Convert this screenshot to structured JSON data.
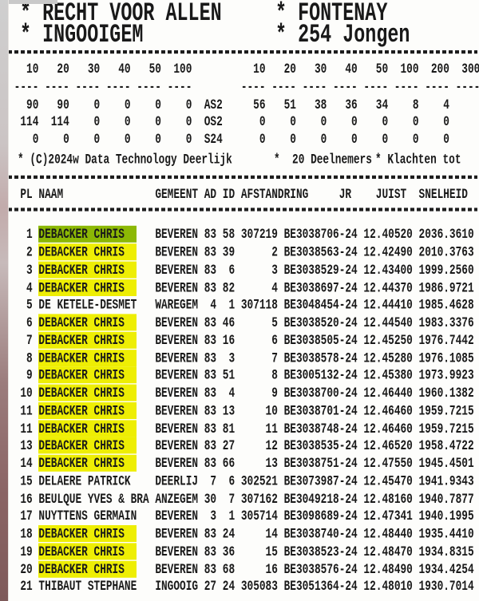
{
  "header": {
    "club_line1": "* RECHT VOOR ALLEN",
    "club_line2": "* INGOOIGEM",
    "race_line1": "* FONTENAY",
    "race_line2": "* 254 Jongen"
  },
  "prize_summary": {
    "left_ticks": [
      "10",
      "20",
      "30",
      "40",
      "50",
      "100"
    ],
    "right_ticks": [
      "10",
      "20",
      "30",
      "40",
      "50",
      "100",
      "200",
      "300"
    ],
    "rows": [
      {
        "label": "AS2",
        "left": [
          "90",
          "90",
          "0",
          "0",
          "0",
          "0"
        ],
        "right": [
          "56",
          "51",
          "38",
          "36",
          "34",
          "8",
          "4",
          ""
        ]
      },
      {
        "label": "OS2",
        "left": [
          "114",
          "114",
          "0",
          "0",
          "0",
          "0"
        ],
        "right": [
          "0",
          "0",
          "0",
          "0",
          "0",
          "0",
          "0",
          ""
        ]
      },
      {
        "label": "S24",
        "left": [
          "0",
          "0",
          "0",
          "0",
          "0",
          "0"
        ],
        "right": [
          "0",
          "0",
          "0",
          "0",
          "0",
          "0",
          "0",
          ""
        ]
      }
    ]
  },
  "footer_line": {
    "copyright": "* (C)2024w Data Technology Deerlijk",
    "participants": "*  20 Deelnemers",
    "complaints": "* Klachten tot"
  },
  "results": {
    "columns": {
      "pl": "PL",
      "naam": "NAAM",
      "gemeent": "GEMEENT",
      "ad": "AD",
      "id": "ID",
      "afstand": "AFSTAND",
      "ring": "RING",
      "jr": "JR",
      "juist": "JUIST",
      "snelheid": "SNELHEID"
    },
    "rows": [
      {
        "pl": "1",
        "naam": "DEBACKER CHRIS",
        "gemeent": "BEVEREN",
        "ad": "83",
        "id": "58",
        "afstand": "307219",
        "ring": "BE3038706-24",
        "juist": "12.40520",
        "snelheid": "2036.3610",
        "hl": "green"
      },
      {
        "pl": "2",
        "naam": "DEBACKER CHRIS",
        "gemeent": "BEVEREN",
        "ad": "83",
        "id": "39",
        "afstand": "2",
        "ring": "BE3038563-24",
        "juist": "12.42490",
        "snelheid": "2010.3763",
        "hl": "yellow"
      },
      {
        "pl": "3",
        "naam": "DEBACKER CHRIS",
        "gemeent": "BEVEREN",
        "ad": "83",
        "id": "6",
        "afstand": "3",
        "ring": "BE3038529-24",
        "juist": "12.43400",
        "snelheid": "1999.2560",
        "hl": "yellow"
      },
      {
        "pl": "4",
        "naam": "DEBACKER CHRIS",
        "gemeent": "BEVEREN",
        "ad": "83",
        "id": "82",
        "afstand": "4",
        "ring": "BE3038697-24",
        "juist": "12.44370",
        "snelheid": "1986.9721",
        "hl": "yellow"
      },
      {
        "pl": "5",
        "naam": "DE KETELE-DESMET",
        "gemeent": "WAREGEM",
        "ad": "4",
        "id": "1",
        "afstand": "307118",
        "ring": "BE3048454-24",
        "juist": "12.44410",
        "snelheid": "1985.4628",
        "hl": null
      },
      {
        "pl": "6",
        "naam": "DEBACKER CHRIS",
        "gemeent": "BEVEREN",
        "ad": "83",
        "id": "46",
        "afstand": "5",
        "ring": "BE3038520-24",
        "juist": "12.44540",
        "snelheid": "1983.3376",
        "hl": "yellow"
      },
      {
        "pl": "7",
        "naam": "DEBACKER CHRIS",
        "gemeent": "BEVEREN",
        "ad": "83",
        "id": "16",
        "afstand": "6",
        "ring": "BE3038505-24",
        "juist": "12.45250",
        "snelheid": "1976.7442",
        "hl": "yellow"
      },
      {
        "pl": "8",
        "naam": "DEBACKER CHRIS",
        "gemeent": "BEVEREN",
        "ad": "83",
        "id": "3",
        "afstand": "7",
        "ring": "BE3038578-24",
        "juist": "12.45280",
        "snelheid": "1976.1085",
        "hl": "yellow"
      },
      {
        "pl": "9",
        "naam": "DEBACKER CHRIS",
        "gemeent": "BEVEREN",
        "ad": "83",
        "id": "51",
        "afstand": "8",
        "ring": "BE3005132-24",
        "juist": "12.45380",
        "snelheid": "1973.9923",
        "hl": "yellow"
      },
      {
        "pl": "10",
        "naam": "DEBACKER CHRIS",
        "gemeent": "BEVEREN",
        "ad": "83",
        "id": "4",
        "afstand": "9",
        "ring": "BE3038700-24",
        "juist": "12.46440",
        "snelheid": "1960.1382",
        "hl": "yellow"
      },
      {
        "pl": "11",
        "naam": "DEBACKER CHRIS",
        "gemeent": "BEVEREN",
        "ad": "83",
        "id": "13",
        "afstand": "10",
        "ring": "BE3038701-24",
        "juist": "12.46460",
        "snelheid": "1959.7215",
        "hl": "yellow"
      },
      {
        "pl": "11",
        "naam": "DEBACKER CHRIS",
        "gemeent": "BEVEREN",
        "ad": "83",
        "id": "81",
        "afstand": "11",
        "ring": "BE3038748-24",
        "juist": "12.46460",
        "snelheid": "1959.7215",
        "hl": "yellow"
      },
      {
        "pl": "13",
        "naam": "DEBACKER CHRIS",
        "gemeent": "BEVEREN",
        "ad": "83",
        "id": "27",
        "afstand": "12",
        "ring": "BE3038535-24",
        "juist": "12.46520",
        "snelheid": "1958.4722",
        "hl": "yellow"
      },
      {
        "pl": "14",
        "naam": "DEBACKER CHRIS",
        "gemeent": "BEVEREN",
        "ad": "83",
        "id": "66",
        "afstand": "13",
        "ring": "BE3038751-24",
        "juist": "12.47550",
        "snelheid": "1945.4501",
        "hl": "yellow"
      },
      {
        "pl": "15",
        "naam": "DELAERE PATRICK",
        "gemeent": "DEERLIJ",
        "ad": "7",
        "id": "6",
        "afstand": "302521",
        "ring": "BE3073987-24",
        "juist": "12.45470",
        "snelheid": "1941.9343",
        "hl": null
      },
      {
        "pl": "16",
        "naam": "BEULQUE YVES & BRA",
        "gemeent": "ANZEGEM",
        "ad": "30",
        "id": "7",
        "afstand": "307162",
        "ring": "BE3049218-24",
        "juist": "12.48160",
        "snelheid": "1940.7877",
        "hl": null
      },
      {
        "pl": "17",
        "naam": "NUYTTENS GERMAIN",
        "gemeent": "BEVEREN",
        "ad": "3",
        "id": "1",
        "afstand": "305714",
        "ring": "BE3098689-24",
        "juist": "12.47341",
        "snelheid": "1940.1995",
        "hl": null
      },
      {
        "pl": "18",
        "naam": "DEBACKER CHRIS",
        "gemeent": "BEVEREN",
        "ad": "83",
        "id": "24",
        "afstand": "14",
        "ring": "BE3038740-24",
        "juist": "12.48440",
        "snelheid": "1935.4410",
        "hl": "yellow"
      },
      {
        "pl": "19",
        "naam": "DEBACKER CHRIS",
        "gemeent": "BEVEREN",
        "ad": "83",
        "id": "36",
        "afstand": "15",
        "ring": "BE3038523-24",
        "juist": "12.48470",
        "snelheid": "1934.8315",
        "hl": "yellow"
      },
      {
        "pl": "20",
        "naam": "DEBACKER CHRIS",
        "gemeent": "BEVEREN",
        "ad": "83",
        "id": "68",
        "afstand": "16",
        "ring": "BE3038576-24",
        "juist": "12.48490",
        "snelheid": "1934.4254",
        "hl": "yellow"
      },
      {
        "pl": "21",
        "naam": "THIBAUT STEPHANE",
        "gemeent": "INGOOIG",
        "ad": "27",
        "id": "24",
        "afstand": "305083",
        "ring": "BE3051364-24",
        "juist": "12.48010",
        "snelheid": "1930.7014",
        "hl": null
      }
    ]
  },
  "colors": {
    "highlight_yellow": "#eeee04",
    "highlight_green": "#8cb805",
    "ink": "#191919"
  }
}
